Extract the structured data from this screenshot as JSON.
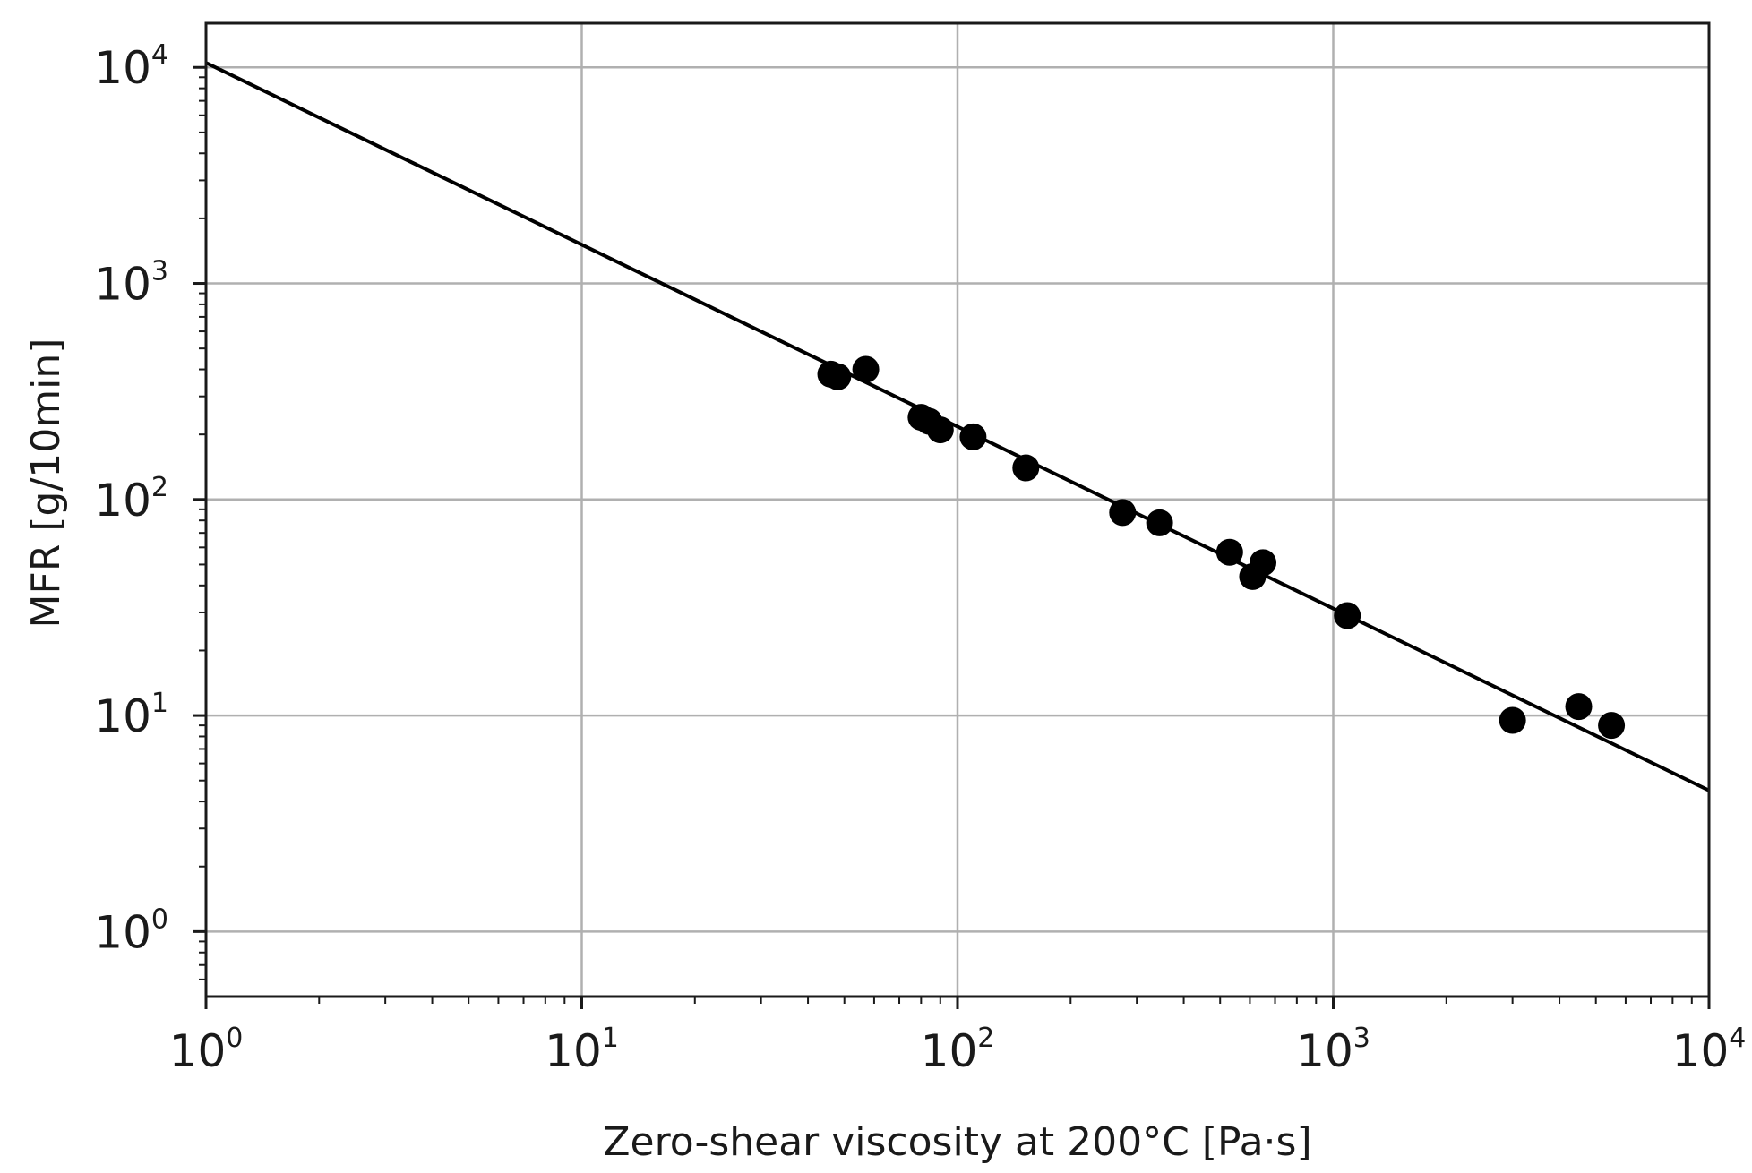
{
  "chart_data": {
    "type": "scatter",
    "xlabel": "Zero-shear viscosity at 200°C [Pa·s]",
    "ylabel": "MFR [g/10min]",
    "x_scale": "log",
    "y_scale": "log",
    "xlim": [
      1,
      10000
    ],
    "ylim": [
      0.5,
      16000
    ],
    "grid": true,
    "x_ticks": [
      {
        "base": "10",
        "exp": "0",
        "value": 1
      },
      {
        "base": "10",
        "exp": "1",
        "value": 10
      },
      {
        "base": "10",
        "exp": "2",
        "value": 100
      },
      {
        "base": "10",
        "exp": "3",
        "value": 1000
      },
      {
        "base": "10",
        "exp": "4",
        "value": 10000
      }
    ],
    "y_ticks": [
      {
        "base": "10",
        "exp": "0",
        "value": 1
      },
      {
        "base": "10",
        "exp": "1",
        "value": 10
      },
      {
        "base": "10",
        "exp": "2",
        "value": 100
      },
      {
        "base": "10",
        "exp": "3",
        "value": 1000
      },
      {
        "base": "10",
        "exp": "4",
        "value": 10000
      }
    ],
    "points": {
      "x": [
        46,
        48,
        57,
        80,
        84,
        90,
        110,
        152,
        275,
        345,
        530,
        610,
        650,
        1090,
        3000,
        4500,
        5500
      ],
      "y": [
        380,
        370,
        400,
        240,
        230,
        210,
        195,
        140,
        87,
        78,
        57,
        44,
        51,
        29,
        9.5,
        11,
        9
      ]
    },
    "fit_line": {
      "x": [
        1,
        10000
      ],
      "y": [
        10500,
        4.5
      ]
    },
    "colors": {
      "marker": "#000000",
      "line": "#000000",
      "grid": "#b0b0b0",
      "frame": "#1a1a1a"
    }
  }
}
